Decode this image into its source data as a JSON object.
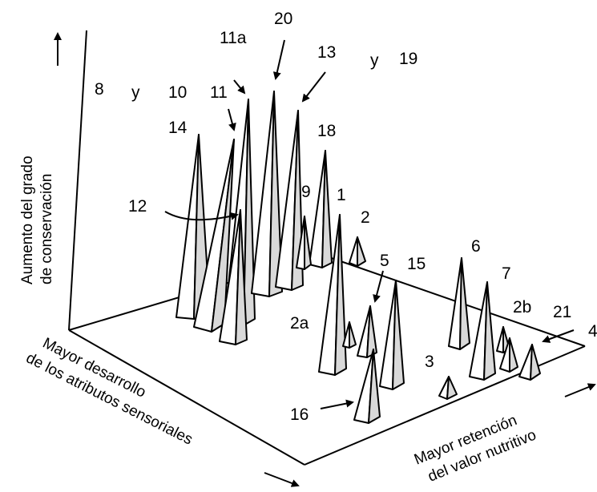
{
  "axes": {
    "vertical": [
      "Aumento del grado",
      "de conservación"
    ],
    "left": [
      "Mayor desarrollo",
      "de los atributos sensoriales"
    ],
    "right": [
      "Mayor retención",
      "del valor nutritivo"
    ]
  },
  "labels": {
    "l8": "8",
    "ly1": "y",
    "l10": "10",
    "l11": "11",
    "l11a": "11a",
    "l20": "20",
    "l13": "13",
    "ly2": "y",
    "l19": "19",
    "l14": "14",
    "l18": "18",
    "l9": "9",
    "l1": "1",
    "l12": "12",
    "l2": "2",
    "l5": "5",
    "l15": "15",
    "l6": "6",
    "l7": "7",
    "l2a": "2a",
    "l2b": "2b",
    "l21": "21",
    "l4": "4",
    "l3": "3",
    "l16": "16"
  }
}
